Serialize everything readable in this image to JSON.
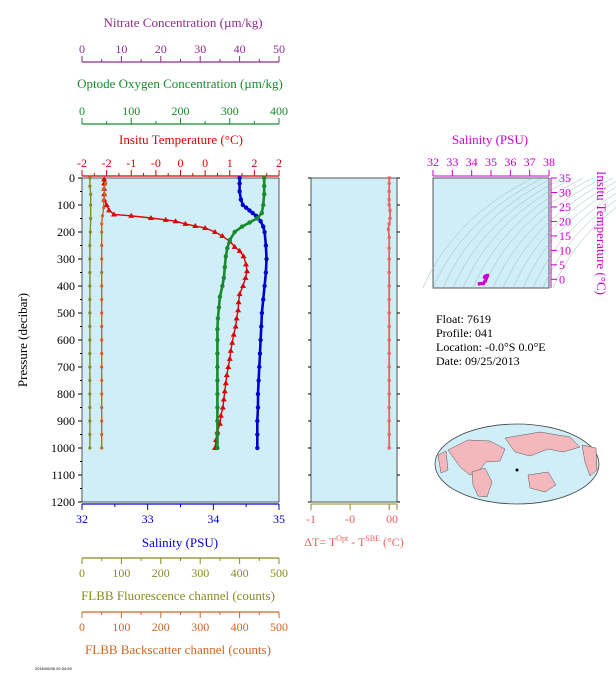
{
  "colors": {
    "nitrate": "#8e2c8e",
    "oxygen": "#178a2c",
    "temperature": "#dd0000",
    "salinity": "#0000cc",
    "deltaT": "#ee6060",
    "fluorescence": "#8a8a20",
    "backscatter": "#cc6622",
    "ts_axis": "#cc00cc",
    "panel_bg": "#cfeef8"
  },
  "labels": {
    "nitrate": "Nitrate Concentration (µm/kg)",
    "oxygen": "Optode Oxygen Concentration (µm/kg)",
    "temperature": "Insitu Temperature (°C)",
    "salinity": "Salinity (PSU)",
    "pressure": "Pressure (decibar)",
    "deltaT": "ΔT= T",
    "deltaT_sup1": "Opt",
    "deltaT_mid": " - T",
    "deltaT_sup2": "SBE",
    "deltaT_unit": " (°C)",
    "fluorescence": "FLBB Fluorescence channel (counts)",
    "backscatter": "FLBB Backscatter channel (counts)",
    "ts_salinity": "Salinity (PSU)",
    "ts_temperature": "Insitu Temperature (°C)",
    "footer": "2016/06/06 20:34:59"
  },
  "info": {
    "float": "Float:  7619",
    "profile": "Profile:  041",
    "location": "Location:  -0.0°S   0.0°E",
    "date": "Date:  09/25/2013"
  },
  "chart_data": [
    {
      "type": "line",
      "panel": "main",
      "ylabel": "Pressure (decibar)",
      "ylim": [
        1200,
        0
      ],
      "yticks": [
        0,
        100,
        200,
        300,
        400,
        500,
        600,
        700,
        800,
        900,
        1000,
        1100,
        1200
      ],
      "axes": {
        "nitrate": {
          "label": "Nitrate Concentration (µm/kg)",
          "range": [
            0,
            50
          ],
          "ticks": [
            0,
            10,
            20,
            30,
            40,
            50
          ]
        },
        "oxygen": {
          "label": "Optode Oxygen Concentration (µm/kg)",
          "range": [
            0,
            400
          ],
          "ticks": [
            0,
            100,
            200,
            300,
            400
          ]
        },
        "temperature": {
          "label": "Insitu Temperature (°C)",
          "range": [
            -2,
            2
          ],
          "ticks": [
            -2,
            -1.5,
            -1,
            -0.5,
            0,
            0.5,
            1,
            1.5,
            2
          ],
          "ticklabels": [
            "-2",
            "-2",
            "-1",
            "-0",
            "0",
            "0",
            "1",
            "2",
            "2"
          ]
        },
        "salinity": {
          "label": "Salinity (PSU)",
          "range": [
            32,
            35
          ],
          "ticks": [
            32,
            33,
            34,
            35
          ]
        },
        "fluorescence": {
          "label": "FLBB Fluorescence channel (counts)",
          "range": [
            0,
            500
          ],
          "ticks": [
            0,
            100,
            200,
            300,
            400,
            500
          ]
        },
        "backscatter": {
          "label": "FLBB Backscatter channel (counts)",
          "range": [
            0,
            500
          ],
          "ticks": [
            0,
            100,
            200,
            300,
            400,
            500
          ]
        }
      },
      "series": [
        {
          "key": "temperature",
          "marker": "triangle",
          "points": [
            [
              -1.55,
              5
            ],
            [
              -1.55,
              20
            ],
            [
              -1.55,
              40
            ],
            [
              -1.55,
              60
            ],
            [
              -1.55,
              80
            ],
            [
              -1.5,
              100
            ],
            [
              -1.45,
              120
            ],
            [
              -1.35,
              135
            ],
            [
              -1.0,
              140
            ],
            [
              -0.6,
              148
            ],
            [
              -0.3,
              155
            ],
            [
              -0.1,
              160
            ],
            [
              0.1,
              170
            ],
            [
              0.3,
              178
            ],
            [
              0.5,
              185
            ],
            [
              0.7,
              200
            ],
            [
              0.85,
              215
            ],
            [
              1.0,
              235
            ],
            [
              1.1,
              255
            ],
            [
              1.2,
              270
            ],
            [
              1.28,
              290
            ],
            [
              1.33,
              320
            ],
            [
              1.35,
              345
            ],
            [
              1.32,
              370
            ],
            [
              1.27,
              400
            ],
            [
              1.2,
              430
            ],
            [
              1.18,
              460
            ],
            [
              1.17,
              490
            ],
            [
              1.14,
              520
            ],
            [
              1.12,
              550
            ],
            [
              1.08,
              580
            ],
            [
              1.05,
              610
            ],
            [
              1.02,
              640
            ],
            [
              1.0,
              670
            ],
            [
              0.97,
              700
            ],
            [
              0.94,
              730
            ],
            [
              0.92,
              760
            ],
            [
              0.9,
              790
            ],
            [
              0.88,
              820
            ],
            [
              0.86,
              850
            ],
            [
              0.82,
              880
            ],
            [
              0.8,
              910
            ],
            [
              0.75,
              940
            ],
            [
              0.72,
              970
            ],
            [
              0.7,
              1000
            ]
          ]
        },
        {
          "key": "salinity",
          "marker": "dot",
          "points": [
            [
              34.4,
              0
            ],
            [
              34.4,
              20
            ],
            [
              34.4,
              50
            ],
            [
              34.42,
              80
            ],
            [
              34.45,
              100
            ],
            [
              34.5,
              110
            ],
            [
              34.55,
              120
            ],
            [
              34.6,
              130
            ],
            [
              34.65,
              140
            ],
            [
              34.72,
              160
            ],
            [
              34.76,
              180
            ],
            [
              34.78,
              200
            ],
            [
              34.8,
              250
            ],
            [
              34.81,
              300
            ],
            [
              34.8,
              350
            ],
            [
              34.78,
              400
            ],
            [
              34.76,
              450
            ],
            [
              34.74,
              500
            ],
            [
              34.73,
              550
            ],
            [
              34.72,
              600
            ],
            [
              34.71,
              650
            ],
            [
              34.7,
              700
            ],
            [
              34.69,
              750
            ],
            [
              34.68,
              800
            ],
            [
              34.68,
              850
            ],
            [
              34.67,
              900
            ],
            [
              34.67,
              950
            ],
            [
              34.67,
              1000
            ]
          ]
        },
        {
          "key": "oxygen",
          "marker": "dot",
          "points": [
            [
              370,
              0
            ],
            [
              370,
              30
            ],
            [
              370,
              60
            ],
            [
              368,
              100
            ],
            [
              365,
              130
            ],
            [
              355,
              150
            ],
            [
              340,
              165
            ],
            [
              325,
              180
            ],
            [
              310,
              200
            ],
            [
              300,
              230
            ],
            [
              295,
              260
            ],
            [
              292,
              290
            ],
            [
              290,
              330
            ],
            [
              288,
              370
            ],
            [
              285,
              400
            ],
            [
              280,
              440
            ],
            [
              278,
              480
            ],
            [
              276,
              520
            ],
            [
              275,
              560
            ],
            [
              275,
              600
            ],
            [
              275,
              650
            ],
            [
              275,
              700
            ],
            [
              275,
              750
            ],
            [
              275,
              800
            ],
            [
              275,
              850
            ],
            [
              275,
              900
            ],
            [
              275,
              950
            ],
            [
              275,
              1000
            ]
          ]
        },
        {
          "key": "fluorescence",
          "marker": "dot",
          "points": [
            [
              20,
              0
            ],
            [
              20,
              30
            ],
            [
              22,
              60
            ],
            [
              22,
              100
            ],
            [
              22,
              150
            ],
            [
              21,
              200
            ],
            [
              20,
              250
            ],
            [
              20,
              300
            ],
            [
              20,
              350
            ],
            [
              20,
              400
            ],
            [
              20,
              450
            ],
            [
              20,
              500
            ],
            [
              20,
              550
            ],
            [
              20,
              600
            ],
            [
              20,
              650
            ],
            [
              20,
              700
            ],
            [
              20,
              750
            ],
            [
              20,
              800
            ],
            [
              20,
              850
            ],
            [
              20,
              900
            ],
            [
              20,
              950
            ],
            [
              20,
              1000
            ]
          ]
        },
        {
          "key": "backscatter",
          "marker": "dot",
          "points": [
            [
              60,
              20
            ],
            [
              55,
              40
            ],
            [
              58,
              60
            ],
            [
              55,
              80
            ],
            [
              55,
              110
            ],
            [
              52,
              140
            ],
            [
              50,
              170
            ],
            [
              50,
              200
            ],
            [
              50,
              250
            ],
            [
              50,
              300
            ],
            [
              50,
              350
            ],
            [
              50,
              400
            ],
            [
              50,
              450
            ],
            [
              50,
              500
            ],
            [
              50,
              550
            ],
            [
              50,
              600
            ],
            [
              50,
              650
            ],
            [
              50,
              700
            ],
            [
              50,
              750
            ],
            [
              50,
              800
            ],
            [
              50,
              850
            ],
            [
              50,
              900
            ],
            [
              50,
              950
            ],
            [
              50,
              1000
            ]
          ]
        }
      ]
    },
    {
      "type": "line",
      "panel": "deltaT",
      "xlabel": "ΔT= TOpt - TSBE (°C)",
      "xlim": [
        -1,
        0.1
      ],
      "xticks": [
        -1,
        -0.5,
        0
      ],
      "xticklabels": [
        "-1",
        "-0",
        "0"
      ],
      "ylim": [
        1200,
        0
      ],
      "points": [
        [
          0,
          0
        ],
        [
          0,
          20
        ],
        [
          0,
          50
        ],
        [
          0,
          80
        ],
        [
          0,
          100
        ],
        [
          0.01,
          120
        ],
        [
          0.01,
          150
        ],
        [
          0,
          170
        ],
        [
          -0.01,
          190
        ],
        [
          0,
          220
        ],
        [
          0,
          260
        ],
        [
          0,
          300
        ],
        [
          0,
          350
        ],
        [
          0,
          400
        ],
        [
          0,
          450
        ],
        [
          0,
          500
        ],
        [
          0,
          550
        ],
        [
          0,
          600
        ],
        [
          0,
          650
        ],
        [
          0,
          700
        ],
        [
          0,
          750
        ],
        [
          0,
          800
        ],
        [
          0,
          850
        ],
        [
          0,
          900
        ],
        [
          0,
          950
        ],
        [
          0,
          1000
        ]
      ]
    },
    {
      "type": "scatter",
      "panel": "ts",
      "xlabel": "Salinity (PSU)",
      "ylabel": "Insitu Temperature (°C)",
      "xlim": [
        32,
        38
      ],
      "xticks": [
        32,
        33,
        34,
        35,
        36,
        37,
        38
      ],
      "ylim": [
        -3,
        35
      ],
      "yticks": [
        0,
        5,
        10,
        15,
        20,
        25,
        30,
        35
      ],
      "points": [
        [
          34.4,
          -1.55
        ],
        [
          34.6,
          -1.4
        ],
        [
          34.7,
          -0.6
        ],
        [
          34.75,
          0.2
        ],
        [
          34.8,
          1.0
        ],
        [
          34.81,
          1.3
        ],
        [
          34.76,
          1.2
        ],
        [
          34.7,
          1.0
        ],
        [
          34.67,
          0.7
        ]
      ]
    }
  ]
}
